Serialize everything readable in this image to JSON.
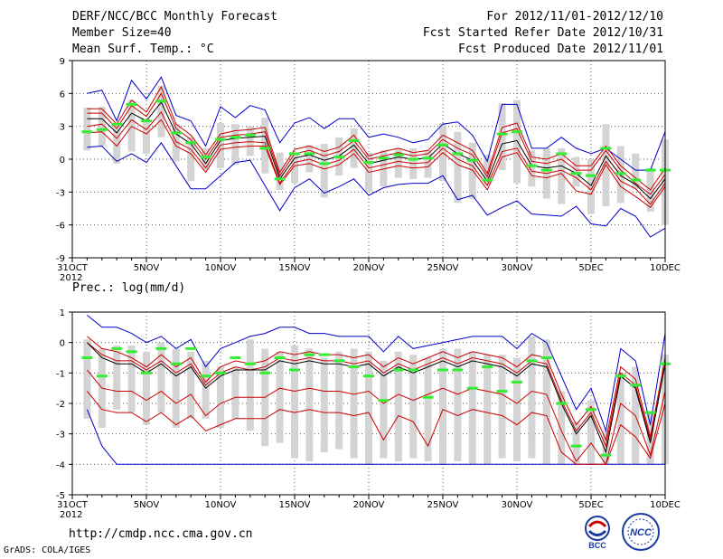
{
  "header": {
    "title": "DERF/NCC/BCC Monthly Forecast",
    "member_size": "Member Size=40",
    "variable": "Mean Surf. Temp.: °C",
    "period": "For 2012/11/01-2012/12/10",
    "start_date": "Fcst Started Refer Date 2012/10/31",
    "produced_date": "Fcst Produced Date 2012/11/01"
  },
  "footer": {
    "url": "http://cmdp.ncc.cma.gov.cn",
    "credit": "GrADS: COLA/IGES",
    "logo_bcc": "BCC",
    "logo_ncc": "NCC"
  },
  "colors": {
    "envelope": "#0000cc",
    "quantile": "#cc0000",
    "median": "#000000",
    "box": "#d4d4d4",
    "obs": "#33ee33",
    "grid": "#555555"
  },
  "chart_data": [
    {
      "type": "line",
      "title": "Mean Surf. Temp.: °C",
      "x_tick_labels": [
        "31OCT",
        "5NOV",
        "10NOV",
        "15NOV",
        "20NOV",
        "25NOV",
        "30NOV",
        "5DEC",
        "10DEC"
      ],
      "x_tick_days": [
        0,
        5,
        10,
        15,
        20,
        25,
        30,
        35,
        40
      ],
      "year_label": "2012",
      "ylim": [
        -9,
        9
      ],
      "y_ticks": [
        -9,
        -6,
        -3,
        0,
        3,
        6,
        9
      ],
      "days": [
        1,
        2,
        3,
        4,
        5,
        6,
        7,
        8,
        9,
        10,
        11,
        12,
        13,
        14,
        15,
        16,
        17,
        18,
        19,
        20,
        21,
        22,
        23,
        24,
        25,
        26,
        27,
        28,
        29,
        30,
        31,
        32,
        33,
        34,
        35,
        36,
        37,
        38,
        39,
        40
      ],
      "series": [
        {
          "name": "max",
          "values": [
            6,
            6.3,
            3.5,
            7.2,
            5.5,
            7.5,
            4,
            3.5,
            1.2,
            4.8,
            3.8,
            4.9,
            4.5,
            1.5,
            3.3,
            3.8,
            2.8,
            3.7,
            3.7,
            2,
            2.3,
            2,
            1.5,
            1.8,
            3.2,
            3.4,
            2.2,
            -0.2,
            5,
            5,
            1,
            1,
            2,
            1,
            0.5,
            1,
            0,
            -1,
            -1,
            2.5
          ]
        },
        {
          "name": "q90",
          "values": [
            4.6,
            4.6,
            3.2,
            5.4,
            4.3,
            6.6,
            3.2,
            2.2,
            0.4,
            2.3,
            2.6,
            2.7,
            2.9,
            -1.2,
            0.9,
            1.2,
            0.7,
            1.1,
            2.2,
            0.3,
            0.7,
            1,
            0.6,
            0.8,
            2.2,
            1.5,
            0.8,
            -1.3,
            2.9,
            3.3,
            0.2,
            0,
            0.5,
            -0.6,
            -0.6,
            1.2,
            -0.6,
            -1.7,
            -2.8,
            -0.8
          ]
        },
        {
          "name": "q75",
          "values": [
            4.2,
            4.2,
            2.8,
            4.9,
            3.9,
            6,
            2.8,
            1.8,
            0,
            2,
            2.2,
            2.3,
            2.5,
            -1.5,
            0.5,
            0.8,
            0.3,
            0.7,
            1.7,
            0,
            0.3,
            0.6,
            0.3,
            0.5,
            1.8,
            1,
            0.4,
            -1.6,
            2.4,
            2.8,
            -0.2,
            -0.4,
            0,
            -1,
            -1,
            0.8,
            -1,
            -2.2,
            -3.2,
            -1.4
          ]
        },
        {
          "name": "median",
          "values": [
            3.7,
            3.7,
            2.4,
            4.2,
            3.5,
            5.2,
            2.3,
            1.4,
            -0.4,
            1.7,
            1.9,
            2,
            2.1,
            -1.8,
            0.1,
            0.4,
            -0.1,
            0.3,
            1.3,
            -0.4,
            -0.1,
            0.2,
            0,
            0.1,
            1.4,
            0.5,
            -0.1,
            -2,
            1.4,
            1.7,
            -0.6,
            -0.8,
            -0.6,
            -1.3,
            -2.4,
            0.3,
            -1.5,
            -2.3,
            -3.6,
            -1.8
          ]
        },
        {
          "name": "q25",
          "values": [
            3,
            3.2,
            1.9,
            3.6,
            2.7,
            4.3,
            1.6,
            0.9,
            -0.8,
            1.3,
            1.5,
            1.6,
            1.5,
            -2.2,
            -0.3,
            0,
            -0.5,
            -0.1,
            0.9,
            -0.8,
            -0.5,
            -0.2,
            -0.4,
            -0.3,
            1,
            0,
            -0.6,
            -2.4,
            0.7,
            1,
            -1.1,
            -1.3,
            -1,
            -1.7,
            -2.8,
            -0.2,
            -2,
            -2.7,
            -4.1,
            -2.2
          ]
        },
        {
          "name": "q10",
          "values": [
            2.4,
            2.5,
            1.2,
            3,
            2.3,
            3.6,
            1.2,
            0.5,
            -1.2,
            0.9,
            1.1,
            1.2,
            1.2,
            -2.3,
            -0.6,
            -0.4,
            -0.9,
            -0.5,
            0.5,
            -1.2,
            -0.9,
            -0.6,
            -0.8,
            -0.7,
            0.6,
            -0.5,
            -1,
            -2.8,
            0.2,
            0.6,
            -1.5,
            -1.7,
            -1.3,
            -2.9,
            -3.2,
            -0.5,
            -2.5,
            -3.4,
            -4.4,
            -2.5
          ]
        },
        {
          "name": "min",
          "values": [
            1.1,
            1.2,
            -0.2,
            0.5,
            -0.3,
            1.5,
            -0.6,
            -2.7,
            -2.7,
            -1.5,
            -0.3,
            -0.1,
            -2.4,
            -4.7,
            -2.6,
            -1.8,
            -3.1,
            -2.5,
            -1.8,
            -3.3,
            -2.6,
            -2.3,
            -2.2,
            -2.2,
            -1.5,
            -3.7,
            -3.3,
            -5.1,
            -4.4,
            -3.8,
            -5,
            -5.1,
            -5.2,
            -4.3,
            -5.9,
            -6.1,
            -4.5,
            -5.2,
            -7.1,
            -6.3
          ]
        },
        {
          "name": "observed",
          "values": [
            2.5,
            2.7,
            3.2,
            5,
            3.5,
            5.3,
            2.4,
            1.5,
            0.2,
            1.8,
            2,
            2.2,
            1,
            -1.8,
            0.5,
            0.5,
            -0.4,
            0.2,
            1.7,
            -0.3,
            0.1,
            0.4,
            0,
            0.1,
            1.3,
            0.5,
            -0.1,
            -1.9,
            2.3,
            2.5,
            -0.6,
            -1,
            0.5,
            -1.3,
            -1.5,
            1,
            -1.3,
            -1.9,
            -1,
            -1
          ]
        },
        {
          "name": "box_top",
          "values": [
            4.7,
            4.8,
            3,
            5.4,
            3.6,
            6.7,
            3.2,
            2,
            1,
            3.3,
            3.2,
            3,
            3.8,
            0.6,
            0.5,
            1.3,
            1.4,
            2,
            2.8,
            0.6,
            0.8,
            1,
            1,
            0.8,
            3.3,
            2.5,
            1.5,
            0.4,
            5.1,
            5.4,
            0.8,
            1,
            1,
            0.2,
            0,
            3.2,
            1.2,
            0.5,
            -0.8,
            1.8
          ]
        },
        {
          "name": "box_bottom",
          "values": [
            0.8,
            1.2,
            -0.4,
            0.7,
            0.5,
            2,
            -0.2,
            -2,
            -1,
            -0.8,
            -0.5,
            0.3,
            -1.3,
            -2.8,
            -2.2,
            -1.2,
            -3.5,
            -1.5,
            -0.8,
            -3,
            -2.5,
            -1.7,
            -1.8,
            -1.7,
            -2,
            -4,
            -3.6,
            -2.3,
            -1,
            -2.2,
            -2.5,
            -3.6,
            -4.1,
            -2.5,
            -5,
            -4.3,
            -4,
            -2.7,
            -4.8,
            -6
          ]
        }
      ]
    },
    {
      "type": "line",
      "title": "Prec.: log(mm/d)",
      "x_tick_labels": [
        "31OCT",
        "5NOV",
        "10NOV",
        "15NOV",
        "20NOV",
        "25NOV",
        "30NOV",
        "5DEC",
        "10DEC"
      ],
      "x_tick_days": [
        0,
        5,
        10,
        15,
        20,
        25,
        30,
        35,
        40
      ],
      "year_label": "2012",
      "ylim": [
        -5,
        1
      ],
      "y_ticks": [
        -5,
        -4,
        -3,
        -2,
        -1,
        0,
        1
      ],
      "days": [
        1,
        2,
        3,
        4,
        5,
        6,
        7,
        8,
        9,
        10,
        11,
        12,
        13,
        14,
        15,
        16,
        17,
        18,
        19,
        20,
        21,
        22,
        23,
        24,
        25,
        26,
        27,
        28,
        29,
        30,
        31,
        32,
        33,
        34,
        35,
        36,
        37,
        38,
        39,
        40
      ],
      "series": [
        {
          "name": "max",
          "values": [
            0.9,
            0.5,
            0.5,
            0.3,
            0,
            0.2,
            -0.2,
            0.1,
            -0.8,
            -0.2,
            0,
            0.2,
            0.3,
            0.5,
            0.5,
            0.3,
            0.3,
            0.2,
            0.2,
            0.2,
            -0.3,
            0.2,
            -0.2,
            -0.1,
            0,
            0.1,
            0.2,
            0.2,
            0.2,
            -0.2,
            0.3,
            0,
            -1.1,
            -2.2,
            -1.5,
            -2.9,
            -0.2,
            -0.6,
            -2.7,
            0.3
          ]
        },
        {
          "name": "q90",
          "values": [
            0.2,
            -0.2,
            -0.3,
            -0.5,
            -0.8,
            -0.4,
            -0.8,
            -0.5,
            -1.3,
            -0.8,
            -0.6,
            -0.7,
            -0.6,
            -0.3,
            -0.4,
            -0.3,
            -0.4,
            -0.4,
            -0.5,
            -0.4,
            -0.8,
            -0.5,
            -0.7,
            -0.5,
            -0.3,
            -0.5,
            -0.3,
            -0.4,
            -0.5,
            -0.8,
            -0.4,
            -0.5,
            -1.7,
            -2.7,
            -2.1,
            -3.2,
            -0.8,
            -1.2,
            -3.1,
            -0.5
          ]
        },
        {
          "name": "q75",
          "values": [
            0,
            -0.4,
            -0.6,
            -0.6,
            -0.9,
            -0.6,
            -1,
            -0.7,
            -1.4,
            -1,
            -0.8,
            -0.9,
            -0.8,
            -0.5,
            -0.6,
            -0.5,
            -0.6,
            -0.6,
            -0.7,
            -0.6,
            -1,
            -0.7,
            -0.9,
            -0.7,
            -0.5,
            -0.7,
            -0.5,
            -0.6,
            -0.7,
            -1,
            -0.6,
            -0.7,
            -1.9,
            -2.9,
            -2.3,
            -3.4,
            -1,
            -1.4,
            -3.2,
            -0.7
          ]
        },
        {
          "name": "median",
          "values": [
            0,
            -0.5,
            -0.7,
            -0.7,
            -1,
            -0.7,
            -1.1,
            -0.8,
            -1.5,
            -1.1,
            -0.9,
            -0.9,
            -0.9,
            -0.6,
            -0.7,
            -0.6,
            -0.7,
            -0.7,
            -0.8,
            -0.7,
            -1.1,
            -0.8,
            -1,
            -0.8,
            -0.6,
            -0.8,
            -0.6,
            -0.7,
            -0.8,
            -1.1,
            -0.7,
            -0.8,
            -2,
            -3,
            -2.4,
            -3.6,
            -1.1,
            -1.5,
            -3.3,
            -0.7
          ]
        },
        {
          "name": "q25",
          "values": [
            -0.9,
            -1.5,
            -1.6,
            -1.6,
            -1.9,
            -1.6,
            -2,
            -1.7,
            -2.4,
            -2,
            -1.8,
            -1.8,
            -1.8,
            -1.5,
            -1.6,
            -1.5,
            -1.6,
            -1.6,
            -1.7,
            -1.6,
            -2,
            -1.7,
            -1.9,
            -1.7,
            -1.5,
            -1.7,
            -1.5,
            -1.6,
            -1.7,
            -2,
            -1.6,
            -1.7,
            -2.9,
            -3.9,
            -3.3,
            -4,
            -2,
            -2.4,
            -3.7,
            -1.6
          ]
        },
        {
          "name": "q10",
          "values": [
            -1.6,
            -2.2,
            -2.3,
            -2.3,
            -2.6,
            -2.3,
            -2.7,
            -2.4,
            -2.9,
            -2.7,
            -2.5,
            -2.5,
            -2.5,
            -2.2,
            -2.3,
            -2.2,
            -2.3,
            -2.3,
            -2.4,
            -2.3,
            -3.2,
            -2.4,
            -2.6,
            -3.4,
            -2.2,
            -2.4,
            -2.2,
            -2.3,
            -2.4,
            -2.7,
            -2.3,
            -2.4,
            -3.6,
            -4,
            -4,
            -4,
            -2.7,
            -3.1,
            -3.8,
            -2
          ]
        },
        {
          "name": "min",
          "values": [
            -2.2,
            -3.4,
            -4,
            -4,
            -4,
            -4,
            -4,
            -4,
            -4,
            -4,
            -4,
            -4,
            -4,
            -4,
            -4,
            -4,
            -4,
            -4,
            -4,
            -4,
            -4,
            -4,
            -4,
            -4,
            -4,
            -4,
            -4,
            -4,
            -4,
            -4,
            -4,
            -4,
            -4,
            -4,
            -4,
            -4,
            -4,
            -4,
            -4,
            -4
          ]
        },
        {
          "name": "observed",
          "values": [
            -0.5,
            -1.1,
            -0.2,
            -0.3,
            -1,
            -0.2,
            -0.7,
            -0.2,
            -1.1,
            -1,
            -0.5,
            -0.7,
            -1,
            -0.5,
            -0.9,
            -0.4,
            -0.4,
            -0.6,
            -0.8,
            -1.1,
            -1.9,
            -0.9,
            -0.9,
            -1.8,
            -0.9,
            -0.9,
            -1.5,
            -0.8,
            -1.6,
            -1.3,
            -0.6,
            -0.5,
            -2,
            -3.4,
            -2.2,
            -3.7,
            -1.1,
            -1.4,
            -2.3,
            -0.7
          ]
        },
        {
          "name": "box_top",
          "values": [
            0.1,
            -0.2,
            -0.1,
            -0.1,
            -0.3,
            0,
            -0.2,
            -0.3,
            -0.6,
            -0.8,
            -0.8,
            0.1,
            -0.2,
            -0.3,
            -0.1,
            -0.2,
            -0.5,
            -0.3,
            -0.2,
            -0.3,
            -0.6,
            -0.3,
            -0.4,
            -0.5,
            -0.2,
            -0.2,
            -0.3,
            -0.4,
            -0.4,
            -0.5,
            0.2,
            0.1,
            -1.6,
            -2.6,
            -1.9,
            -2.9,
            -1,
            -0.8,
            -2.3,
            -0.4
          ]
        },
        {
          "name": "box_bottom",
          "values": [
            -2.5,
            -2.8,
            -2.2,
            -2.3,
            -2.7,
            -2.3,
            -2.8,
            -2.5,
            -2.5,
            -2.8,
            -2.5,
            -2.9,
            -3.4,
            -3.3,
            -3.8,
            -3.9,
            -3.6,
            -3.5,
            -3.8,
            -4,
            -3.8,
            -3.9,
            -3.8,
            -3.9,
            -4,
            -3.9,
            -4,
            -4,
            -3.8,
            -3.9,
            -3.8,
            -4,
            -4,
            -4,
            -4,
            -4,
            -4,
            -4,
            -4,
            -4
          ]
        }
      ]
    }
  ]
}
